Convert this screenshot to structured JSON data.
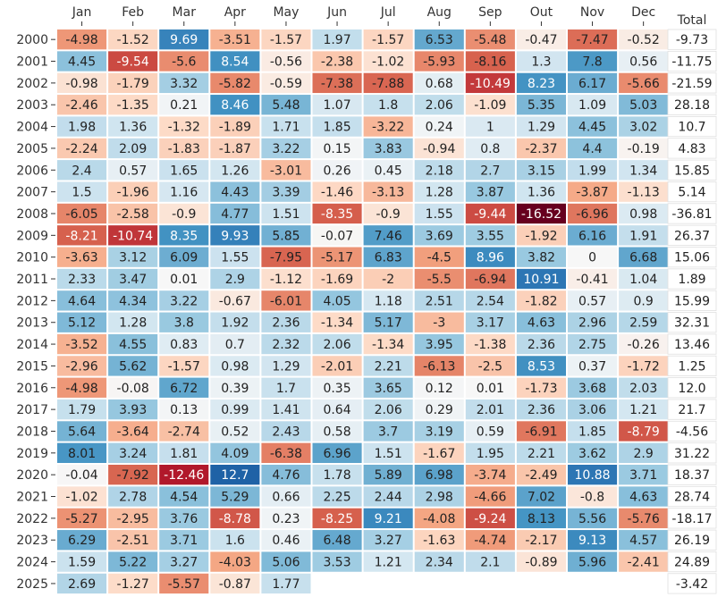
{
  "chart_data": {
    "type": "heatmap",
    "title": "",
    "months": [
      "Jan",
      "Feb",
      "Mar",
      "Apr",
      "May",
      "Jun",
      "Jul",
      "Aug",
      "Sep",
      "Out",
      "Nov",
      "Dec"
    ],
    "total_label": "Total",
    "years": [
      "2000",
      "2001",
      "2002",
      "2003",
      "2004",
      "2005",
      "2006",
      "2007",
      "2008",
      "2009",
      "2010",
      "2011",
      "2012",
      "2013",
      "2014",
      "2015",
      "2016",
      "2017",
      "2018",
      "2019",
      "2020",
      "2021",
      "2022",
      "2023",
      "2024",
      "2025"
    ],
    "values": [
      [
        -4.98,
        -1.52,
        9.69,
        -3.51,
        -1.57,
        1.97,
        -1.57,
        6.53,
        -5.48,
        -0.47,
        -7.47,
        -0.52
      ],
      [
        4.45,
        -9.54,
        -5.6,
        8.54,
        -0.56,
        -2.38,
        -1.02,
        -5.93,
        -8.16,
        1.3,
        7.8,
        0.56
      ],
      [
        -0.98,
        -1.79,
        3.32,
        -5.82,
        -0.59,
        -7.38,
        -7.88,
        0.68,
        -10.49,
        8.23,
        6.17,
        -5.66
      ],
      [
        -2.46,
        -1.35,
        0.21,
        8.46,
        5.48,
        1.07,
        1.8,
        2.06,
        -1.09,
        5.35,
        1.09,
        5.03
      ],
      [
        1.98,
        1.36,
        -1.32,
        -1.89,
        1.71,
        1.85,
        -3.22,
        0.24,
        1,
        1.29,
        4.45,
        3.02
      ],
      [
        -2.24,
        2.09,
        -1.83,
        -1.87,
        3.22,
        0.15,
        3.83,
        -0.94,
        0.8,
        -2.37,
        4.4,
        -0.19
      ],
      [
        2.4,
        0.57,
        1.65,
        1.26,
        -3.01,
        0.26,
        0.45,
        2.18,
        2.7,
        3.15,
        1.99,
        1.34
      ],
      [
        1.5,
        -1.96,
        1.16,
        4.43,
        3.39,
        -1.46,
        -3.13,
        1.28,
        3.87,
        1.36,
        -3.87,
        -1.13
      ],
      [
        -6.05,
        -2.58,
        -0.9,
        4.77,
        1.51,
        -8.35,
        -0.9,
        1.55,
        -9.44,
        -16.52,
        -6.96,
        0.98
      ],
      [
        -8.21,
        -10.74,
        8.35,
        9.93,
        5.85,
        -0.07,
        7.46,
        3.69,
        3.55,
        -1.92,
        6.16,
        1.91
      ],
      [
        -3.63,
        3.12,
        6.09,
        1.55,
        -7.95,
        -5.17,
        6.83,
        -4.5,
        8.96,
        3.82,
        0,
        6.68
      ],
      [
        2.33,
        3.47,
        0.01,
        2.9,
        -1.12,
        -1.69,
        -2,
        -5.5,
        -6.94,
        10.91,
        -0.41,
        1.04
      ],
      [
        4.64,
        4.34,
        3.22,
        -0.67,
        -6.01,
        4.05,
        1.18,
        2.51,
        2.54,
        -1.82,
        0.57,
        0.9
      ],
      [
        5.12,
        1.28,
        3.8,
        1.92,
        2.36,
        -1.34,
        5.17,
        -3,
        3.17,
        4.63,
        2.96,
        2.59
      ],
      [
        -3.52,
        4.55,
        0.83,
        0.7,
        2.32,
        2.06,
        -1.34,
        3.95,
        -1.38,
        2.36,
        2.75,
        -0.26
      ],
      [
        -2.96,
        5.62,
        -1.57,
        0.98,
        1.29,
        -2.01,
        2.21,
        -6.13,
        -2.5,
        8.53,
        0.37,
        -1.72
      ],
      [
        -4.98,
        -0.08,
        6.72,
        0.39,
        1.7,
        0.35,
        3.65,
        0.12,
        0.01,
        -1.73,
        3.68,
        2.03
      ],
      [
        1.79,
        3.93,
        0.13,
        0.99,
        1.41,
        0.64,
        2.06,
        0.29,
        2.01,
        2.36,
        3.06,
        1.21
      ],
      [
        5.64,
        -3.64,
        -2.74,
        0.52,
        2.43,
        0.58,
        3.7,
        3.19,
        0.59,
        -6.91,
        1.85,
        -8.79
      ],
      [
        8.01,
        3.24,
        1.81,
        4.09,
        -6.38,
        6.96,
        1.51,
        -1.67,
        1.95,
        2.21,
        3.62,
        2.9
      ],
      [
        -0.04,
        -7.92,
        -12.46,
        12.7,
        4.76,
        1.78,
        5.89,
        6.98,
        -3.74,
        -2.49,
        10.88,
        3.71
      ],
      [
        -1.02,
        2.78,
        4.54,
        5.29,
        0.66,
        2.25,
        2.44,
        2.98,
        -4.66,
        7.02,
        -0.8,
        4.63
      ],
      [
        -5.27,
        -2.95,
        3.76,
        -8.78,
        0.23,
        -8.25,
        9.21,
        -4.08,
        -9.24,
        8.13,
        5.56,
        -5.76
      ],
      [
        6.29,
        -2.51,
        3.71,
        1.6,
        0.46,
        6.48,
        3.27,
        -1.63,
        -4.74,
        -2.17,
        9.13,
        4.57
      ],
      [
        1.59,
        5.22,
        3.27,
        -4.03,
        5.06,
        3.53,
        1.21,
        2.34,
        2.1,
        -0.89,
        5.96,
        -2.41
      ],
      [
        2.69,
        -1.27,
        -5.57,
        -0.87,
        1.77,
        null,
        null,
        null,
        null,
        null,
        null,
        null
      ]
    ],
    "totals": [
      "-9.73",
      "-11.75",
      "-21.59",
      "28.18",
      "10.7",
      "4.83",
      "15.85",
      "5.14",
      "-36.81",
      "26.37",
      "15.06",
      "1.89",
      "15.99",
      "32.31",
      "13.46",
      "1.25",
      "12.0",
      "21.7",
      "-4.56",
      "31.22",
      "18.37",
      "28.74",
      "-18.17",
      "26.19",
      "24.89",
      "-3.42"
    ],
    "color_scale": "RdBu",
    "value_range": [
      -16.52,
      12.7
    ]
  }
}
